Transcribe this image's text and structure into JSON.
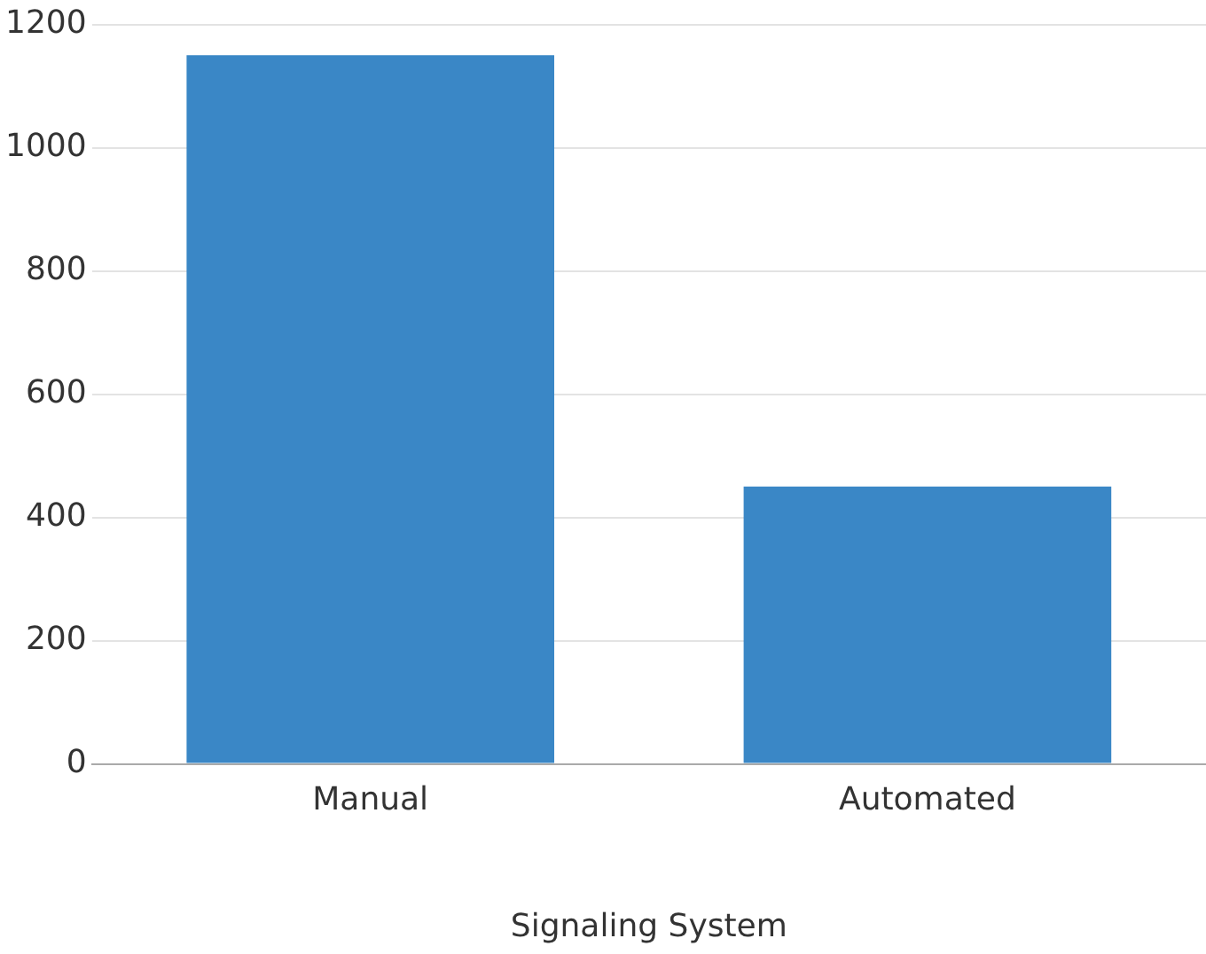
{
  "chart_data": {
    "type": "bar",
    "xlabel": "Signaling System",
    "categories": [
      "Manual",
      "Automated"
    ],
    "values": [
      1150,
      450
    ],
    "color": "#3a87c6",
    "ylim": [
      0,
      1200
    ],
    "yticks": [
      0,
      200,
      400,
      600,
      800,
      1000,
      1200
    ],
    "grid": "y"
  }
}
